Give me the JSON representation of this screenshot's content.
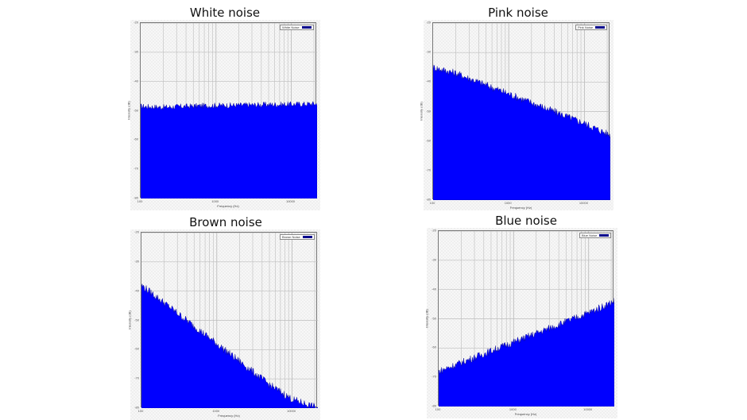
{
  "colors": {
    "series": "#0000ff",
    "series_edge": "#00008b",
    "grid": "#bdbdbd"
  },
  "chart_data": [
    {
      "type": "area",
      "title": "White noise",
      "legend": "White Noise",
      "xlabel": "Frequency (Hz)",
      "ylabel": "Intensity (dB)",
      "xscale": "log",
      "xlim": [
        100,
        22000
      ],
      "ylim": [
        -80,
        -20
      ],
      "xticks": [
        "100",
        "1000",
        "10000"
      ],
      "yticks": [
        "-20",
        "-30",
        "-40",
        "-50",
        "-60",
        "-70",
        "-80"
      ],
      "grid": true,
      "legend_position": "top-right",
      "x": [
        100,
        200,
        500,
        1000,
        2000,
        5000,
        10000,
        22000
      ],
      "values": [
        -48.5,
        -48.8,
        -48.4,
        -48.2,
        -48.1,
        -47.9,
        -47.8,
        -47.6
      ]
    },
    {
      "type": "area",
      "title": "Pink noise",
      "legend": "Pink Noise",
      "xlabel": "Frequency (Hz)",
      "ylabel": "Intensity (dB)",
      "xscale": "log",
      "xlim": [
        100,
        22000
      ],
      "ylim": [
        -80,
        -20
      ],
      "xticks": [
        "100",
        "1000",
        "10000"
      ],
      "yticks": [
        "-20",
        "-30",
        "-40",
        "-50",
        "-60",
        "-70",
        "-80"
      ],
      "grid": true,
      "legend_position": "top-right",
      "x": [
        100,
        200,
        500,
        1000,
        2000,
        5000,
        10000,
        22000
      ],
      "values": [
        -35,
        -37,
        -41,
        -44,
        -47,
        -51,
        -54,
        -58
      ]
    },
    {
      "type": "area",
      "title": "Brown noise",
      "legend": "Brown Noise",
      "xlabel": "Frequency (Hz)",
      "ylabel": "Intensity (dB)",
      "xscale": "log",
      "xlim": [
        100,
        22000
      ],
      "ylim": [
        -80,
        -20
      ],
      "xticks": [
        "100",
        "1000",
        "10000"
      ],
      "yticks": [
        "-20",
        "-30",
        "-40",
        "-50",
        "-60",
        "-70",
        "-80"
      ],
      "grid": true,
      "legend_position": "top-right",
      "x": [
        100,
        200,
        500,
        1000,
        2000,
        5000,
        10000,
        22000
      ],
      "values": [
        -38,
        -44,
        -52,
        -58,
        -64,
        -72,
        -77,
        -80
      ]
    },
    {
      "type": "area",
      "title": "Blue noise",
      "legend": "Blue Noise",
      "xlabel": "Frequency (Hz)",
      "ylabel": "Intensity (dB)",
      "xscale": "log",
      "xlim": [
        100,
        22000
      ],
      "ylim": [
        -80,
        -20
      ],
      "xticks": [
        "100",
        "1000",
        "10000"
      ],
      "yticks": [
        "-20",
        "-30",
        "-40",
        "-50",
        "-60",
        "-70",
        "-80"
      ],
      "grid": true,
      "legend_position": "top-right",
      "x": [
        100,
        200,
        500,
        1000,
        2000,
        5000,
        10000,
        22000
      ],
      "values": [
        -68,
        -65,
        -61,
        -58,
        -55,
        -51,
        -48,
        -44
      ]
    }
  ]
}
